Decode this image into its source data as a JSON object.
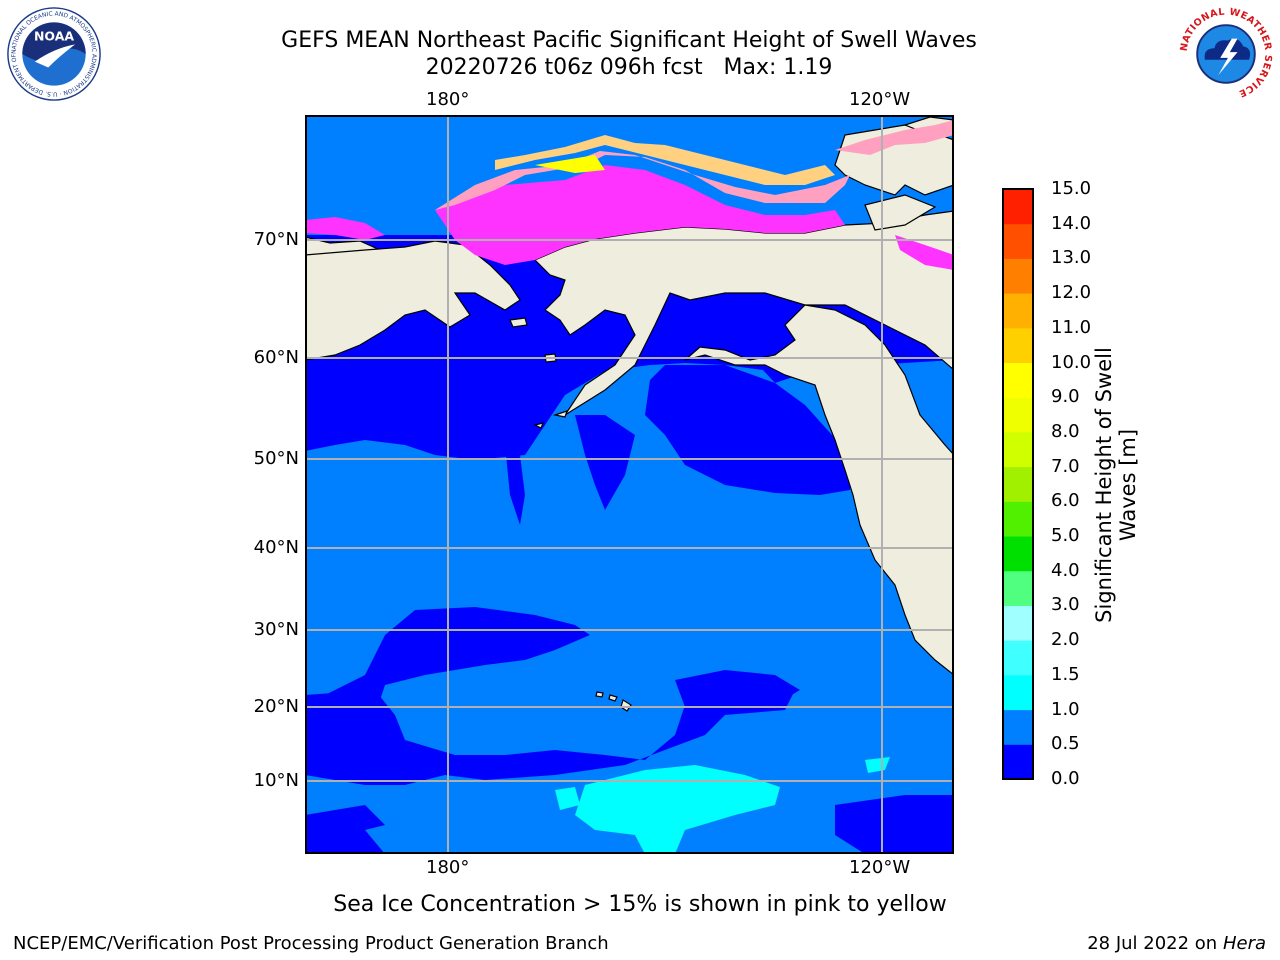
{
  "header": {
    "title_line1": "GEFS MEAN Northeast Pacific Significant Height of Swell Waves",
    "title_line2": "20220726 t06z 096h fcst   Max: 1.19"
  },
  "logos": {
    "left": {
      "icon": "noaa-logo",
      "text": "NOAA",
      "ring_text": "NATIONAL OCEANIC AND ATMOSPHERIC ADMINISTRATION · U.S. DEPARTMENT OF COMMERCE"
    },
    "right": {
      "icon": "nws-logo",
      "ring_text": "NATIONAL WEATHER SERVICE"
    }
  },
  "map": {
    "lon_top": [
      "180°",
      "120°W"
    ],
    "lon_bottom": [
      "180°",
      "120°W"
    ],
    "lat_labels": [
      "70°N",
      "60°N",
      "50°N",
      "40°N",
      "30°N",
      "20°N",
      "10°N"
    ],
    "colors": {
      "land": "#efedde",
      "sea_0_05": "#0000ff",
      "sea_05_10": "#0080ff",
      "sea_10_15": "#00ffff",
      "grid": "#b0b0b0",
      "ice": [
        "#ff33ff",
        "#ffa0c0",
        "#ffd080",
        "#ffff00"
      ]
    }
  },
  "colorbar": {
    "title_line1": "Significant Height of Swell",
    "title_line2": "Waves [m]",
    "ticks": [
      "0.0",
      "0.5",
      "1.0",
      "1.5",
      "2.0",
      "3.0",
      "4.0",
      "5.0",
      "6.0",
      "7.0",
      "8.0",
      "9.0",
      "10.0",
      "11.0",
      "12.0",
      "13.0",
      "14.0",
      "15.0"
    ],
    "colors": [
      "#0000ff",
      "#0080ff",
      "#00ffff",
      "#40ffff",
      "#a0ffff",
      "#50ff80",
      "#00e000",
      "#50f000",
      "#a0f000",
      "#d0ff00",
      "#f0ff00",
      "#ffff00",
      "#ffd000",
      "#ffb000",
      "#ff8000",
      "#ff5000",
      "#ff2000"
    ]
  },
  "footer": {
    "sea_ice_note": "Sea Ice Concentration > 15% is shown in pink to yellow",
    "credit": "NCEP/EMC/Verification Post Processing Product Generation Branch",
    "date": "28 Jul 2022 on",
    "host": "Hera"
  }
}
